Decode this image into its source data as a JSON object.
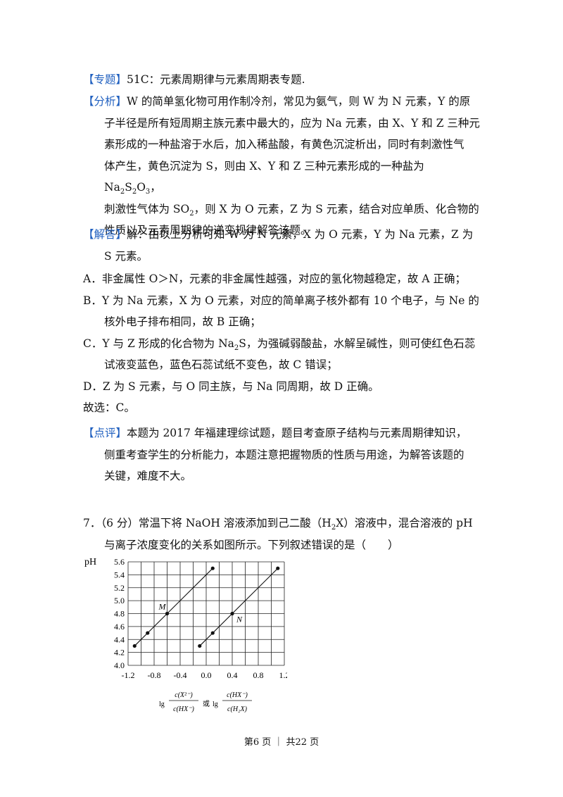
{
  "topic": {
    "tag": "【专题】",
    "text": "51C：元素周期律与元素周期表专题."
  },
  "analysis": {
    "tag": "【分析】",
    "l1": "W 的简单氢化物可用作制冷剂，常见为氨气，则 W 为 N 元素，Y 的原",
    "l2": "子半径是所有短周期主族元素中最大的，应为 Na 元素，由 X、Y 和 Z 三种元",
    "l3": "素形成的一种盐溶于水后，加入稀盐酸，有黄色沉淀析出，同时有刺激性气",
    "l4a": "体产生，黄色沉淀为 S，则由 X、Y 和 Z 三种元素形成的一种盐为 Na",
    "l4s1": "2",
    "l4b": "S",
    "l4s2": "2",
    "l4c": "O",
    "l4s3": "3",
    "l4d": "，",
    "l5a": "刺激性气体为 SO",
    "l5s": "2",
    "l5b": "，则 X 为 O 元素，Z 为 S 元素，结合对应单质、化合物的",
    "l6": "性质以及元素周期律的递变规律解答该题。"
  },
  "answer": {
    "tag": "【解答】",
    "l1": "解：由以上分析可知 W 为 N 元素，X 为 O 元素，Y 为 Na 元素，Z 为",
    "l2": "S 元素。"
  },
  "options": {
    "a": "A．非金属性 O＞N，元素的非金属性越强，对应的氢化物越稳定，故 A 正确；",
    "b1": "B．Y 为 Na 元素，X 为 O 元素，对应的简单离子核外都有 10 个电子，与 Ne 的",
    "b2": "核外电子排布相同，故 B 正确；",
    "c1a": "C．Y 与 Z 形成的化合物为 Na",
    "c1s": "2",
    "c1b": "S，为强碱弱酸盐，水解呈碱性，则可使红色石蕊",
    "c2": "试液变蓝色，蓝色石蕊试纸不变色，故 C 错误；",
    "d": "D．Z 为 S 元素，与 O 同主族，与 Na 同周期，故 D 正确。"
  },
  "choice": "故选：C。",
  "comment": {
    "tag": "【点评】",
    "l1": "本题为 2017 年福建理综试题，题目考查原子结构与元素周期律知识，",
    "l2": "侧重考查学生的分析能力，本题注意把握物质的性质与用途，为解答该题的",
    "l3": "关键，难度不大。"
  },
  "question": {
    "l1a": "7．（6 分）常温下将 NaOH 溶液添加到己二酸（H",
    "l1s": "2",
    "l1b": "X）溶液中，混合溶液的 pH",
    "l2": "与离子浓度变化的关系如图所示。下列叙述错误的是（　　）"
  },
  "chart_data": {
    "type": "line",
    "ylabel": "pH",
    "xlabel_lg1": "lg",
    "xlabel_num1": "c(X²⁻)",
    "xlabel_den1": "c(HX⁻)",
    "xlabel_or": "或",
    "xlabel_lg2": "lg",
    "xlabel_num2": "c(HX⁻)",
    "xlabel_den2": "c(H₂X)",
    "xlim": [
      -1.2,
      1.2
    ],
    "ylim": [
      4.0,
      5.6
    ],
    "x_ticks": [
      "-1.2",
      "-0.8",
      "-0.4",
      "0.0",
      "0.4",
      "0.8",
      "1.2"
    ],
    "y_ticks": [
      "4.0",
      "4.2",
      "4.4",
      "4.6",
      "4.8",
      "5.0",
      "5.2",
      "5.4",
      "5.6"
    ],
    "series": [
      {
        "name": "M",
        "x": [
          -1.1,
          -0.9,
          -0.6,
          0.1
        ],
        "y": [
          4.3,
          4.5,
          4.8,
          5.5
        ]
      },
      {
        "name": "N",
        "x": [
          -0.1,
          0.1,
          0.4,
          1.1
        ],
        "y": [
          4.3,
          4.5,
          4.8,
          5.5
        ]
      }
    ]
  },
  "footer": "第6 页 ｜ 共22 页"
}
